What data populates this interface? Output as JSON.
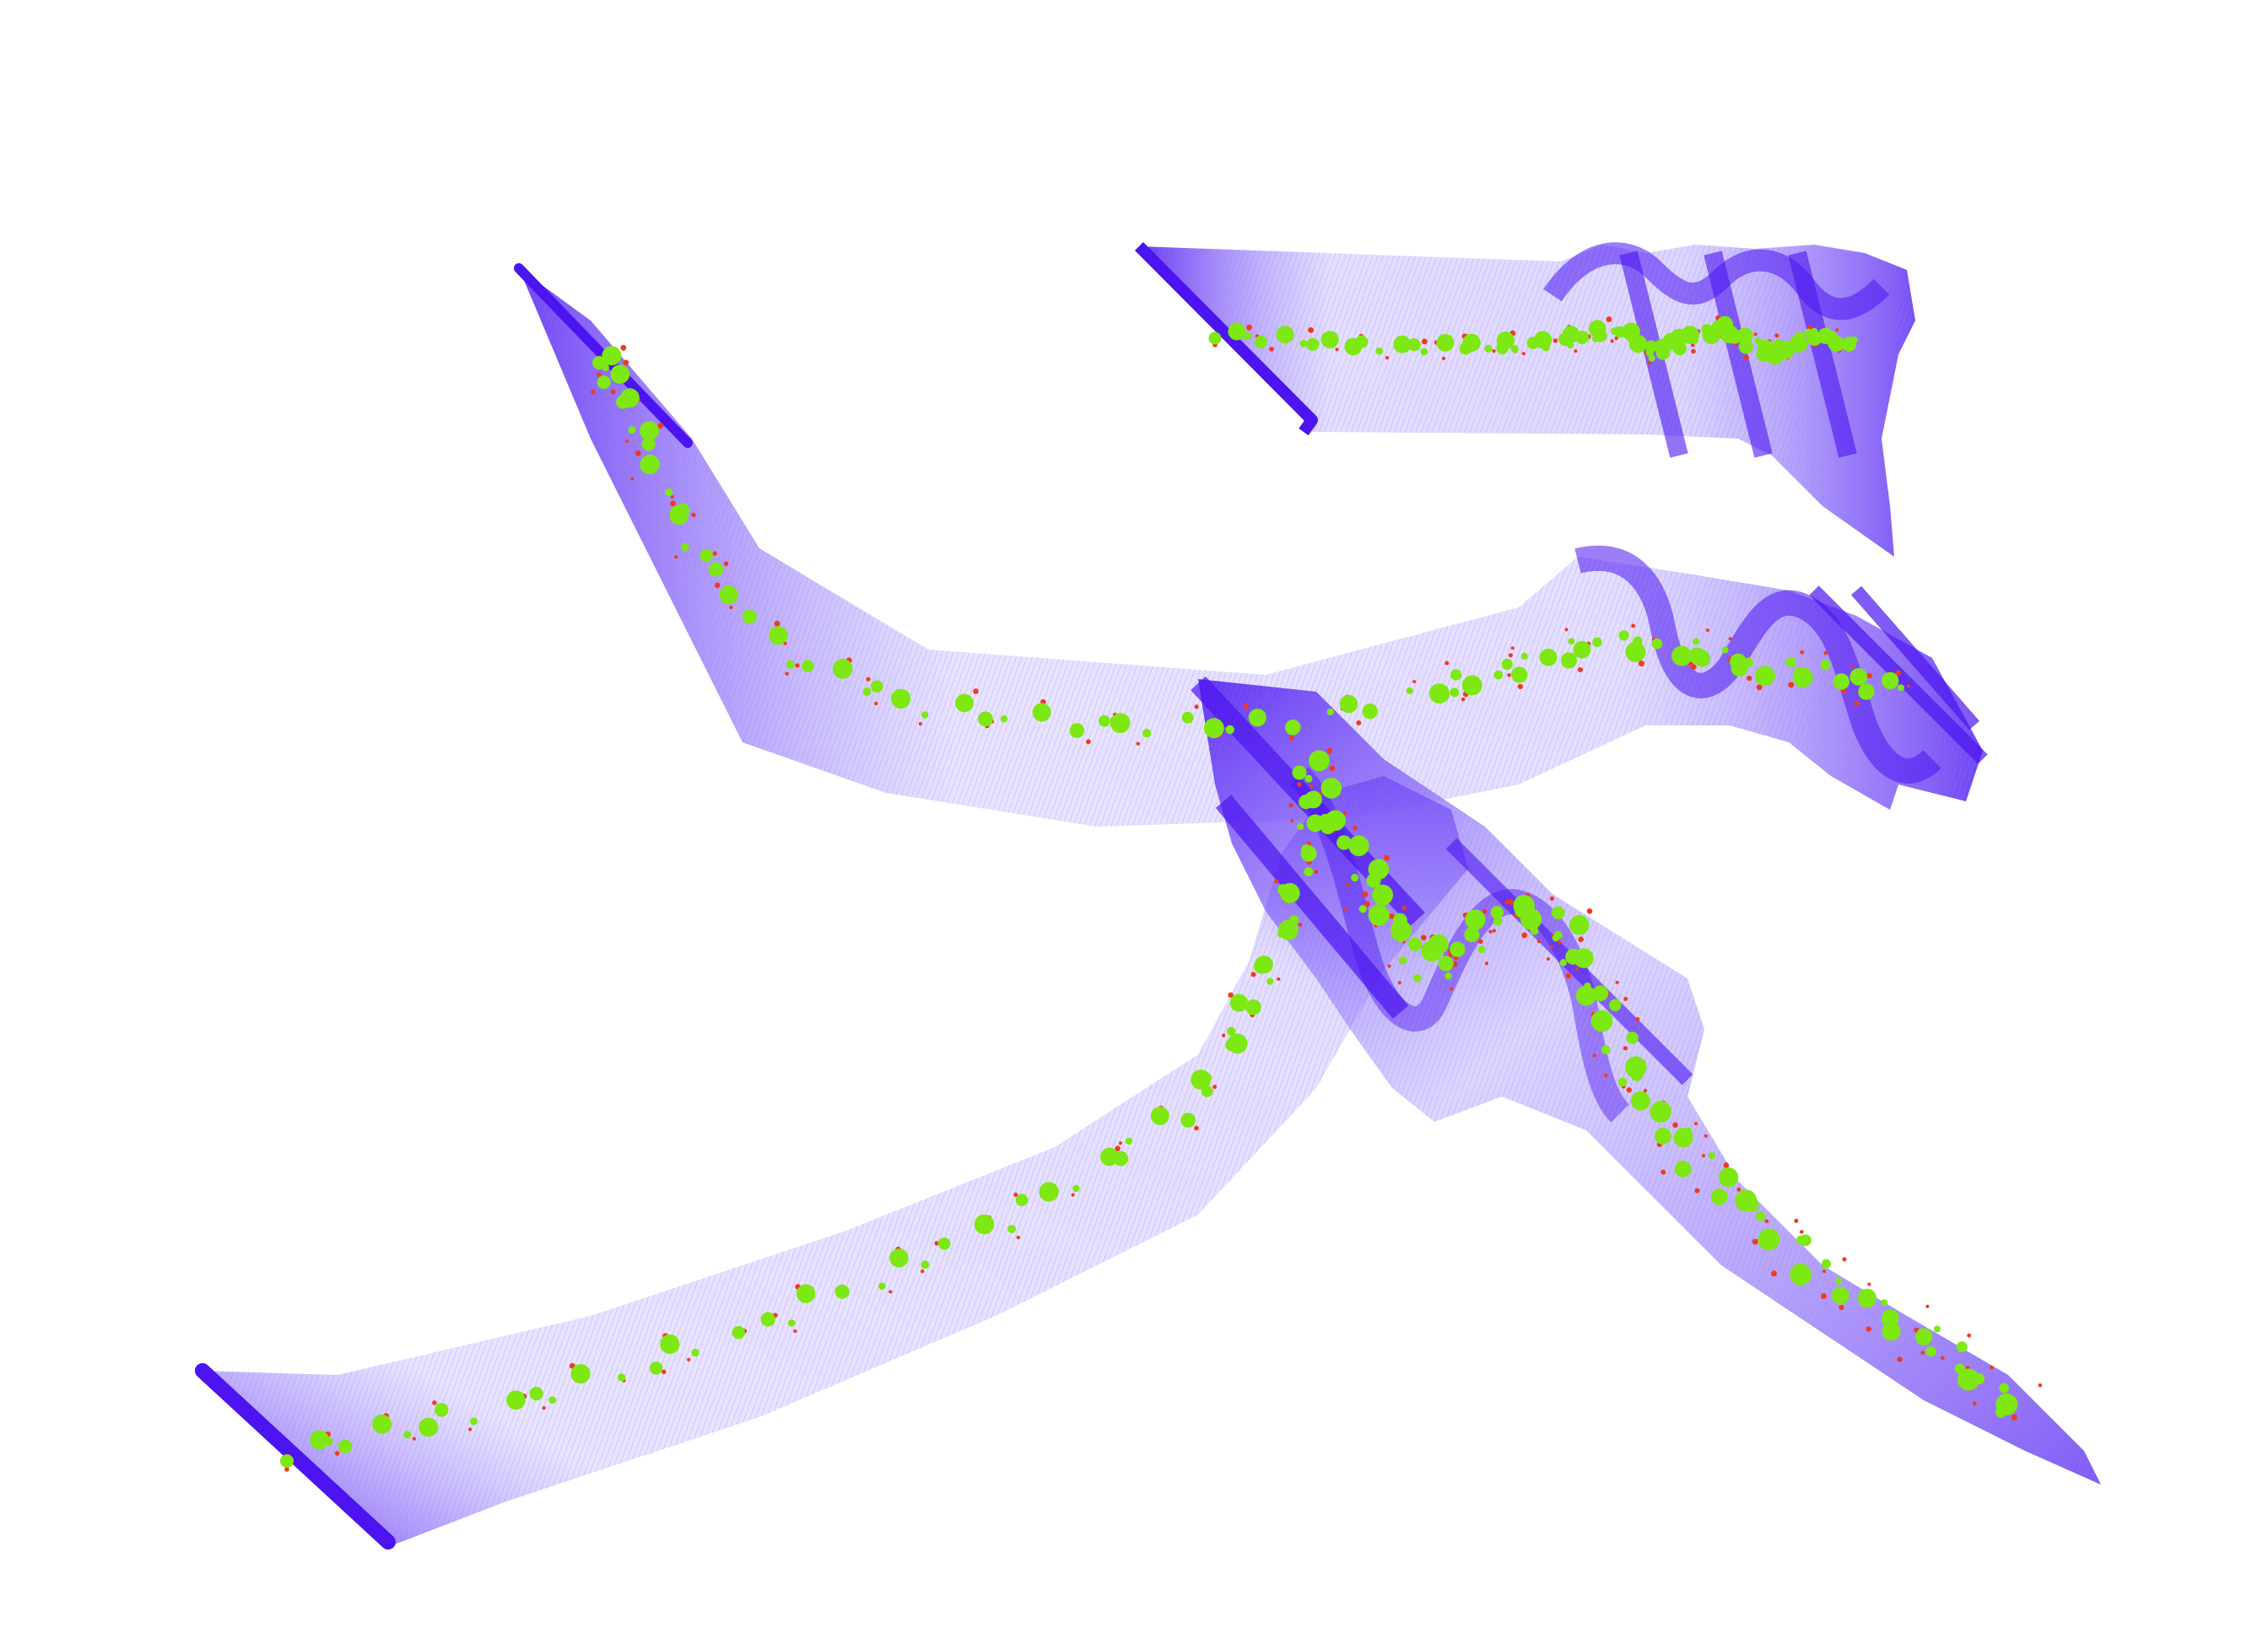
{
  "artwork": {
    "subject": "3d-calligraphic-stroke-render",
    "background_color": "#ffffff",
    "ribbon_color": "#4b14f0",
    "ribbon_light_color": "#b3a4ff",
    "marker_color": "#7de812",
    "trace_color": "#f03a1e",
    "ribbon_count": 4
  }
}
